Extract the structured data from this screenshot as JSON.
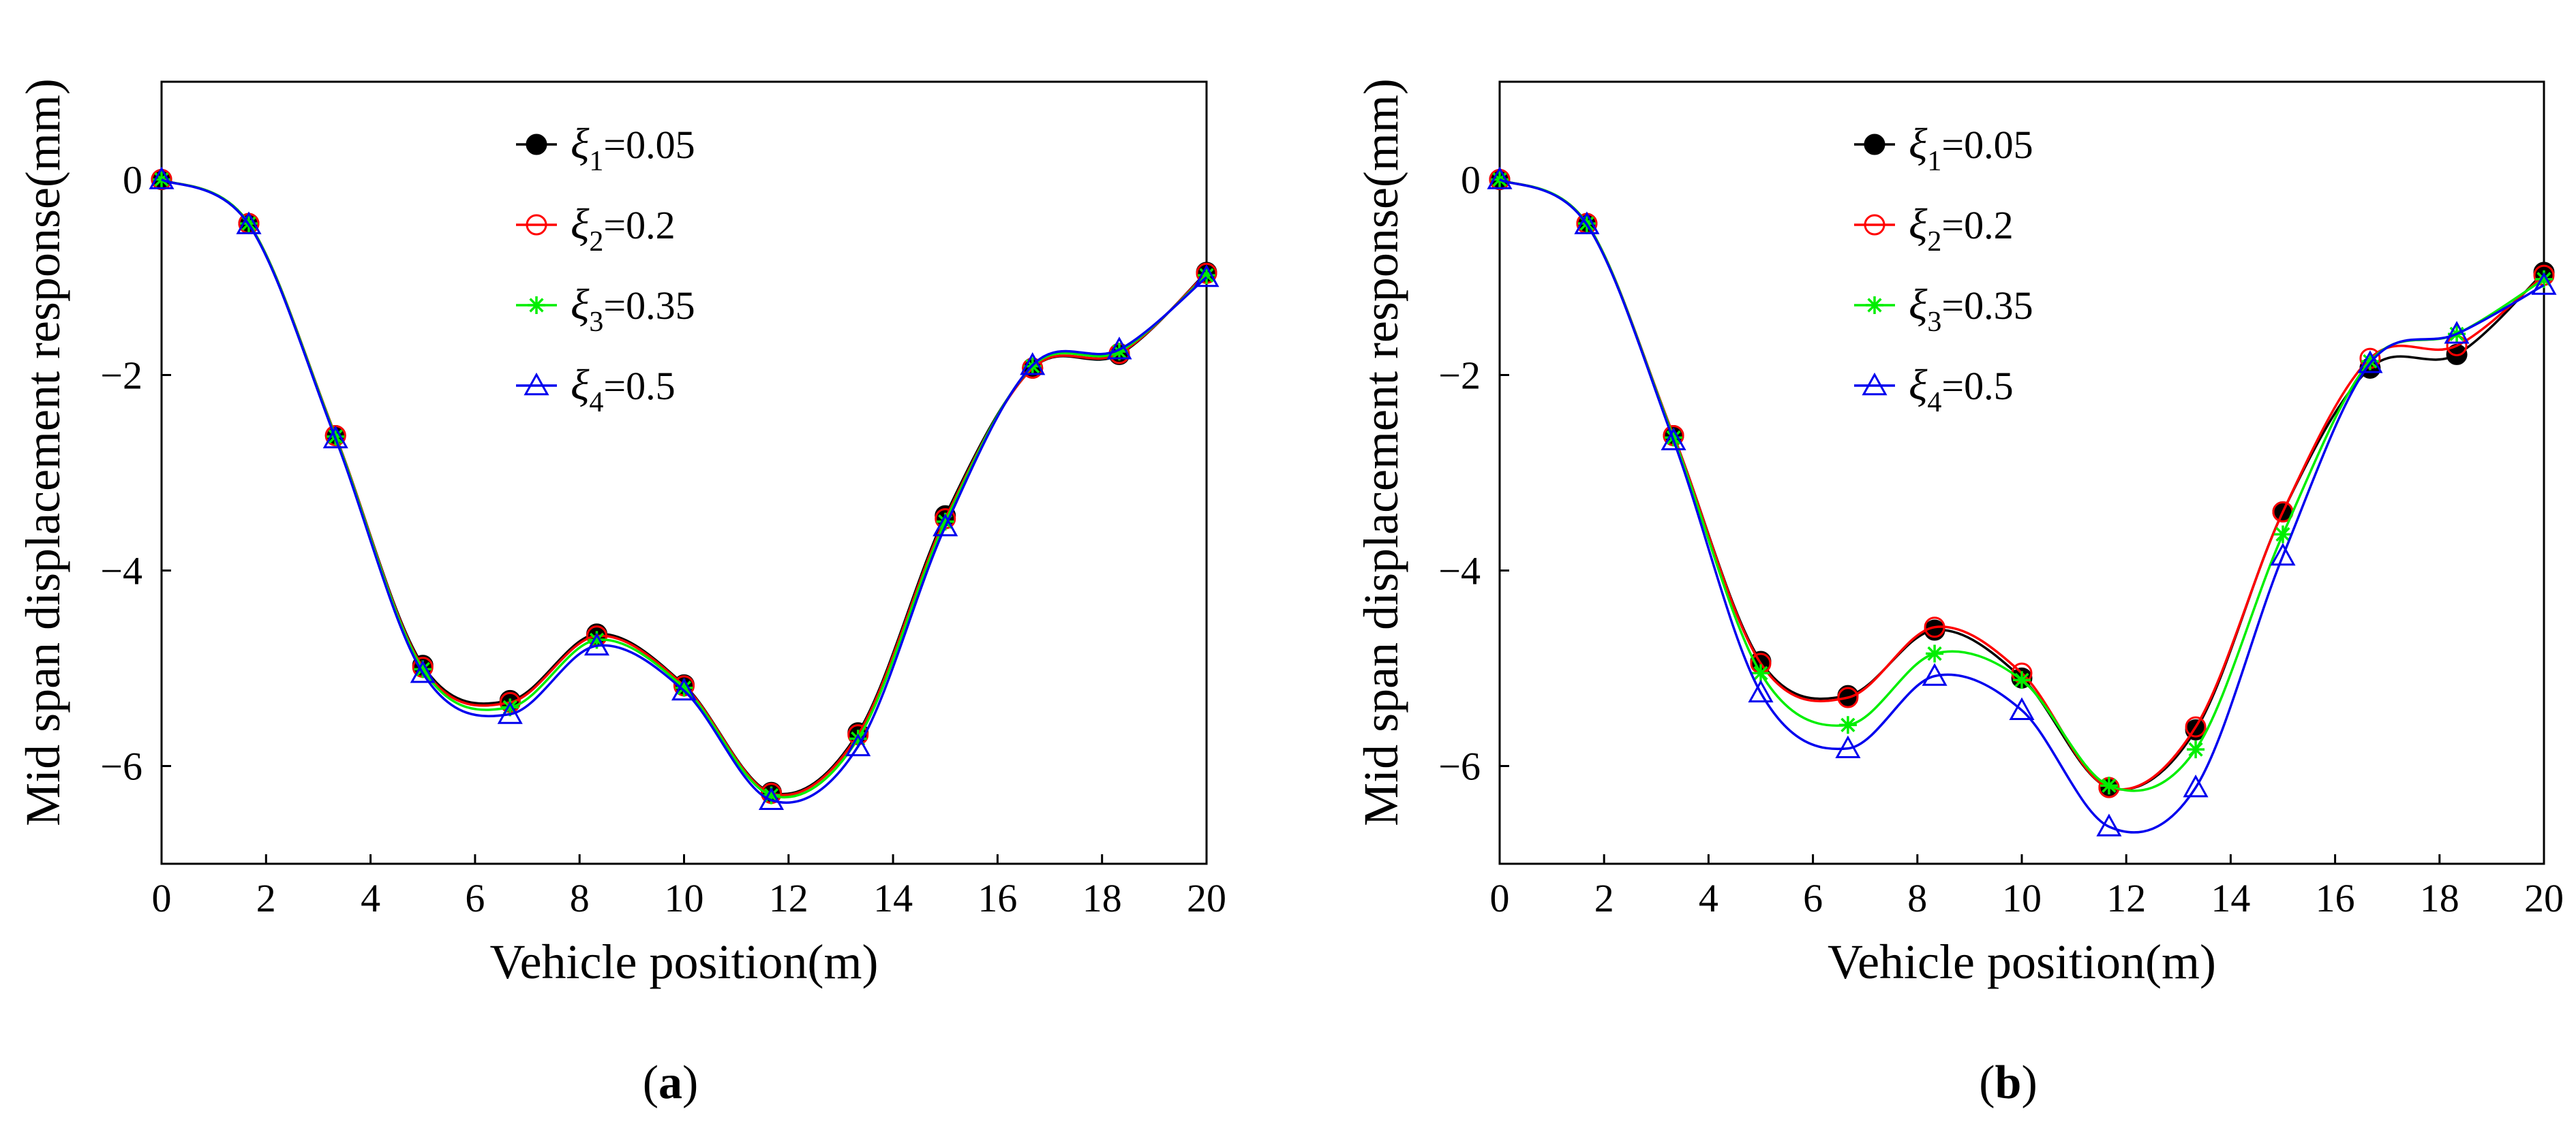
{
  "chart_data": [
    {
      "panel": "a",
      "type": "line",
      "xlabel": "Vehicle position(m)",
      "ylabel": "Mid span displacement response(mm)",
      "xlim": [
        0,
        20
      ],
      "ylim": [
        -7,
        1
      ],
      "xticks": [
        "0",
        "2",
        "4",
        "6",
        "8",
        "10",
        "12",
        "14",
        "16",
        "18",
        "20"
      ],
      "yticks": [
        "0",
        "−2",
        "−4",
        "−6"
      ],
      "caption_open": "(",
      "caption_letter": "a",
      "caption_close": ")",
      "legend": [
        {
          "sym": "ξ",
          "sub": "1",
          "val": "=0.05"
        },
        {
          "sym": "ξ",
          "sub": "2",
          "val": "=0.2"
        },
        {
          "sym": "ξ",
          "sub": "3",
          "val": "=0.35"
        },
        {
          "sym": "ξ",
          "sub": "4",
          "val": "=0.5"
        }
      ],
      "x": [
        0,
        1.67,
        3.33,
        5.0,
        6.67,
        8.33,
        10.0,
        11.67,
        13.33,
        15.0,
        16.67,
        18.33,
        20.0
      ],
      "series": [
        {
          "name": "ξ1=0.05",
          "color": "#000000",
          "marker": "filled-circle",
          "values": [
            0,
            -0.45,
            -2.62,
            -4.97,
            -5.33,
            -4.65,
            -5.17,
            -6.27,
            -5.66,
            -3.44,
            -1.93,
            -1.79,
            -0.95
          ]
        },
        {
          "name": "ξ2=0.2",
          "color": "#ff0000",
          "marker": "open-circle",
          "values": [
            0,
            -0.45,
            -2.62,
            -4.99,
            -5.35,
            -4.67,
            -5.18,
            -6.28,
            -5.68,
            -3.47,
            -1.93,
            -1.78,
            -0.96
          ]
        },
        {
          "name": "ξ3=0.35",
          "color": "#00ee00",
          "marker": "asterisk",
          "values": [
            0,
            -0.45,
            -2.63,
            -5.01,
            -5.4,
            -4.71,
            -5.2,
            -6.3,
            -5.72,
            -3.5,
            -1.91,
            -1.76,
            -0.98
          ]
        },
        {
          "name": "ξ4=0.5",
          "color": "#0000ee",
          "marker": "open-triangle",
          "values": [
            0,
            -0.46,
            -2.65,
            -5.05,
            -5.47,
            -4.77,
            -5.23,
            -6.35,
            -5.8,
            -3.55,
            -1.9,
            -1.74,
            -1.0
          ]
        }
      ]
    },
    {
      "panel": "b",
      "type": "line",
      "xlabel": "Vehicle position(m)",
      "ylabel": "Mid span displacement response(mm)",
      "xlim": [
        0,
        20
      ],
      "ylim": [
        -7,
        1
      ],
      "xticks": [
        "0",
        "2",
        "4",
        "6",
        "8",
        "10",
        "12",
        "14",
        "16",
        "18",
        "20"
      ],
      "yticks": [
        "0",
        "−2",
        "−4",
        "−6"
      ],
      "caption_open": "(",
      "caption_letter": "b",
      "caption_close": ")",
      "legend": [
        {
          "sym": "ξ",
          "sub": "1",
          "val": "=0.05"
        },
        {
          "sym": "ξ",
          "sub": "2",
          "val": "=0.2"
        },
        {
          "sym": "ξ",
          "sub": "3",
          "val": "=0.35"
        },
        {
          "sym": "ξ",
          "sub": "4",
          "val": "=0.5"
        }
      ],
      "x": [
        0,
        1.67,
        3.33,
        5.0,
        6.67,
        8.33,
        10.0,
        11.67,
        13.33,
        15.0,
        16.67,
        18.33,
        20.0
      ],
      "series": [
        {
          "name": "ξ1=0.05",
          "color": "#000000",
          "marker": "filled-circle",
          "values": [
            0,
            -0.45,
            -2.62,
            -4.93,
            -5.28,
            -4.61,
            -5.1,
            -6.22,
            -5.63,
            -3.4,
            -1.93,
            -1.79,
            -0.95
          ]
        },
        {
          "name": "ξ2=0.2",
          "color": "#ff0000",
          "marker": "open-circle",
          "values": [
            0,
            -0.45,
            -2.62,
            -4.95,
            -5.3,
            -4.58,
            -5.05,
            -6.22,
            -5.6,
            -3.4,
            -1.83,
            -1.7,
            -0.98
          ]
        },
        {
          "name": "ξ3=0.35",
          "color": "#00ee00",
          "marker": "asterisk",
          "values": [
            0,
            -0.45,
            -2.64,
            -5.05,
            -5.58,
            -4.85,
            -5.12,
            -6.2,
            -5.83,
            -3.63,
            -1.86,
            -1.58,
            -1.02
          ]
        },
        {
          "name": "ξ4=0.5",
          "color": "#0000ee",
          "marker": "open-triangle",
          "values": [
            0,
            -0.46,
            -2.67,
            -5.25,
            -5.82,
            -5.08,
            -5.43,
            -6.62,
            -6.22,
            -3.85,
            -1.88,
            -1.58,
            -1.08
          ]
        }
      ]
    }
  ]
}
